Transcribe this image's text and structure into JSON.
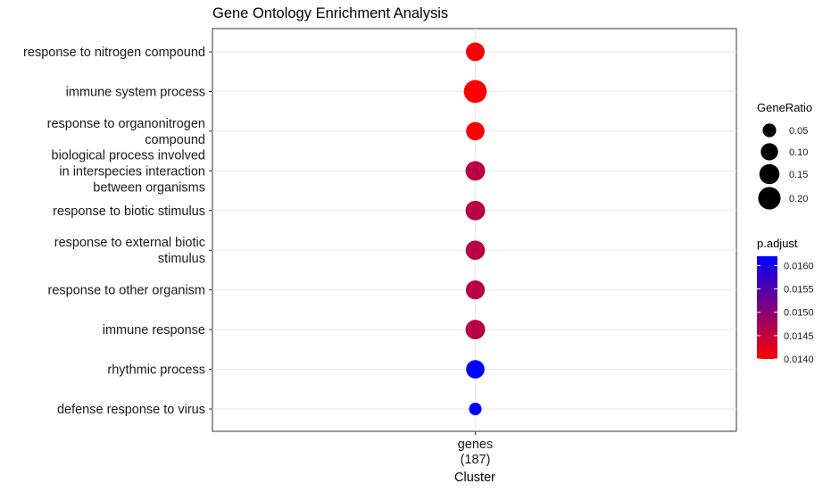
{
  "chart_data": {
    "type": "scatter",
    "title": "Gene Ontology Enrichment Analysis",
    "xlabel": "Cluster",
    "x_categories": [
      [
        "genes",
        "(187)"
      ]
    ],
    "categories": [
      [
        "response to nitrogen compound"
      ],
      [
        "immune system process"
      ],
      [
        "response to organonitrogen",
        "compound"
      ],
      [
        "biological process involved",
        "in interspecies interaction",
        "between organisms"
      ],
      [
        "response to biotic stimulus"
      ],
      [
        "response to external biotic",
        "stimulus"
      ],
      [
        "response to other organism"
      ],
      [
        "immune response"
      ],
      [
        "rhythmic process"
      ],
      [
        "defense response to virus"
      ]
    ],
    "points": [
      {
        "y": "response to nitrogen compound",
        "x": "genes (187)",
        "gene_ratio": 0.125,
        "p_adjust": 0.01405
      },
      {
        "y": "immune system process",
        "x": "genes (187)",
        "gene_ratio": 0.21,
        "p_adjust": 0.014
      },
      {
        "y": "response to organonitrogen compound",
        "x": "genes (187)",
        "gene_ratio": 0.12,
        "p_adjust": 0.01405
      },
      {
        "y": "biological process involved in interspecies interaction between organisms",
        "x": "genes (187)",
        "gene_ratio": 0.14,
        "p_adjust": 0.0146
      },
      {
        "y": "response to biotic stimulus",
        "x": "genes (187)",
        "gene_ratio": 0.14,
        "p_adjust": 0.0146
      },
      {
        "y": "response to external biotic stimulus",
        "x": "genes (187)",
        "gene_ratio": 0.135,
        "p_adjust": 0.0146
      },
      {
        "y": "response to other organism",
        "x": "genes (187)",
        "gene_ratio": 0.13,
        "p_adjust": 0.0146
      },
      {
        "y": "immune response",
        "x": "genes (187)",
        "gene_ratio": 0.14,
        "p_adjust": 0.0146
      },
      {
        "y": "rhythmic process",
        "x": "genes (187)",
        "gene_ratio": 0.12,
        "p_adjust": 0.0162
      },
      {
        "y": "defense response to virus",
        "x": "genes (187)",
        "gene_ratio": 0.04,
        "p_adjust": 0.0162
      }
    ],
    "size_legend": {
      "title": "GeneRatio",
      "labels": [
        "0.05",
        "0.10",
        "0.15",
        "0.20"
      ],
      "values": [
        0.05,
        0.1,
        0.15,
        0.2
      ]
    },
    "color_legend": {
      "title": "p.adjust",
      "labels": [
        "0.0160",
        "0.0155",
        "0.0150",
        "0.0145",
        "0.0140"
      ],
      "values": [
        0.016,
        0.0155,
        0.015,
        0.0145,
        0.014
      ],
      "range": [
        0.014,
        0.0162
      ],
      "low_color": "#ff0000",
      "high_color": "#0000ff"
    },
    "grid": true,
    "legend_position": "right"
  }
}
